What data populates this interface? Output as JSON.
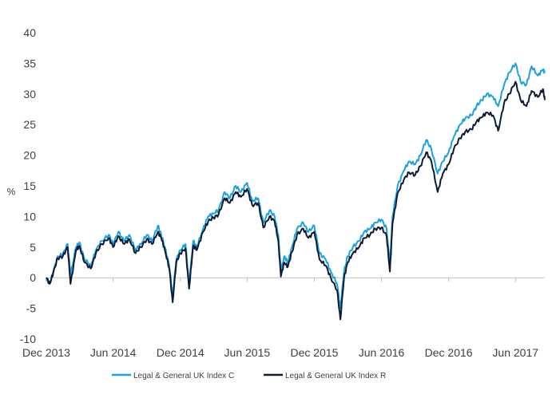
{
  "chart_data": {
    "type": "line",
    "ylabel": "%",
    "ylim": [
      -10,
      40
    ],
    "yticks": [
      -10,
      -5,
      0,
      5,
      10,
      15,
      20,
      25,
      30,
      35,
      40
    ],
    "xlim": [
      "2013-12-01",
      "2017-08-20"
    ],
    "xticks": [
      {
        "label": "Dec 2013",
        "date": "2013-12-01"
      },
      {
        "label": "Jun 2014",
        "date": "2014-06-01"
      },
      {
        "label": "Dec 2014",
        "date": "2014-12-01"
      },
      {
        "label": "Jun 2015",
        "date": "2015-06-01"
      },
      {
        "label": "Dec 2015",
        "date": "2015-12-01"
      },
      {
        "label": "Jun 2016",
        "date": "2016-06-01"
      },
      {
        "label": "Dec 2016",
        "date": "2016-12-01"
      },
      {
        "label": "Jun 2017",
        "date": "2017-06-01"
      }
    ],
    "grid": false,
    "legend_position": "bottom",
    "series": [
      {
        "name": "Legal & General UK Index C",
        "color": "#1BA1E2",
        "points": [
          [
            "2013-12-01",
            0.0
          ],
          [
            "2013-12-10",
            -1.0
          ],
          [
            "2013-12-20",
            1.0
          ],
          [
            "2014-01-01",
            3.5
          ],
          [
            "2014-01-15",
            3.8
          ],
          [
            "2014-01-28",
            5.5
          ],
          [
            "2014-02-05",
            0.5
          ],
          [
            "2014-02-20",
            5.0
          ],
          [
            "2014-03-01",
            5.8
          ],
          [
            "2014-03-15",
            3.0
          ],
          [
            "2014-04-01",
            2.0
          ],
          [
            "2014-04-15",
            4.5
          ],
          [
            "2014-05-01",
            6.0
          ],
          [
            "2014-05-20",
            7.0
          ],
          [
            "2014-06-01",
            5.5
          ],
          [
            "2014-06-15",
            7.5
          ],
          [
            "2014-07-01",
            6.0
          ],
          [
            "2014-07-15",
            7.0
          ],
          [
            "2014-08-01",
            4.5
          ],
          [
            "2014-08-15",
            5.5
          ],
          [
            "2014-09-01",
            7.0
          ],
          [
            "2014-09-15",
            6.0
          ],
          [
            "2014-10-01",
            8.5
          ],
          [
            "2014-10-10",
            7.0
          ],
          [
            "2014-10-20",
            5.0
          ],
          [
            "2014-11-01",
            2.0
          ],
          [
            "2014-11-10",
            -3.0
          ],
          [
            "2014-11-20",
            3.0
          ],
          [
            "2014-12-01",
            4.5
          ],
          [
            "2014-12-15",
            5.5
          ],
          [
            "2014-12-25",
            -1.0
          ],
          [
            "2015-01-05",
            6.0
          ],
          [
            "2015-01-15",
            5.0
          ],
          [
            "2015-02-01",
            8.0
          ],
          [
            "2015-02-15",
            10.0
          ],
          [
            "2015-03-01",
            10.5
          ],
          [
            "2015-03-15",
            11.0
          ],
          [
            "2015-04-01",
            14.0
          ],
          [
            "2015-04-15",
            13.0
          ],
          [
            "2015-05-01",
            15.0
          ],
          [
            "2015-05-15",
            14.0
          ],
          [
            "2015-06-01",
            15.5
          ],
          [
            "2015-06-15",
            12.5
          ],
          [
            "2015-07-01",
            13.0
          ],
          [
            "2015-07-15",
            9.0
          ],
          [
            "2015-08-01",
            11.0
          ],
          [
            "2015-08-15",
            10.0
          ],
          [
            "2015-08-25",
            7.0
          ],
          [
            "2015-09-01",
            1.0
          ],
          [
            "2015-09-10",
            3.5
          ],
          [
            "2015-09-20",
            2.5
          ],
          [
            "2015-10-01",
            5.0
          ],
          [
            "2015-10-15",
            8.0
          ],
          [
            "2015-11-01",
            9.0
          ],
          [
            "2015-11-15",
            7.5
          ],
          [
            "2015-12-01",
            8.5
          ],
          [
            "2015-12-15",
            4.0
          ],
          [
            "2016-01-01",
            3.0
          ],
          [
            "2016-01-15",
            1.0
          ],
          [
            "2016-02-01",
            -1.0
          ],
          [
            "2016-02-10",
            -5.0
          ],
          [
            "2016-02-20",
            1.0
          ],
          [
            "2016-03-01",
            3.5
          ],
          [
            "2016-03-15",
            5.0
          ],
          [
            "2016-04-01",
            6.0
          ],
          [
            "2016-04-15",
            7.5
          ],
          [
            "2016-05-01",
            8.0
          ],
          [
            "2016-05-15",
            9.0
          ],
          [
            "2016-06-01",
            9.5
          ],
          [
            "2016-06-15",
            8.0
          ],
          [
            "2016-06-24",
            2.0
          ],
          [
            "2016-07-01",
            10.0
          ],
          [
            "2016-07-15",
            15.0
          ],
          [
            "2016-08-01",
            17.5
          ],
          [
            "2016-08-15",
            19.0
          ],
          [
            "2016-09-01",
            18.5
          ],
          [
            "2016-09-15",
            20.0
          ],
          [
            "2016-10-01",
            22.5
          ],
          [
            "2016-10-15",
            21.0
          ],
          [
            "2016-11-01",
            17.0
          ],
          [
            "2016-11-15",
            19.0
          ],
          [
            "2016-12-01",
            20.5
          ],
          [
            "2016-12-15",
            23.0
          ],
          [
            "2017-01-01",
            25.0
          ],
          [
            "2017-01-15",
            26.0
          ],
          [
            "2017-02-01",
            26.5
          ],
          [
            "2017-02-15",
            28.0
          ],
          [
            "2017-03-01",
            29.0
          ],
          [
            "2017-03-15",
            30.0
          ],
          [
            "2017-04-01",
            29.5
          ],
          [
            "2017-04-15",
            28.0
          ],
          [
            "2017-05-01",
            31.5
          ],
          [
            "2017-05-15",
            33.5
          ],
          [
            "2017-06-01",
            35.0
          ],
          [
            "2017-06-15",
            32.0
          ],
          [
            "2017-07-01",
            31.5
          ],
          [
            "2017-07-15",
            34.5
          ],
          [
            "2017-08-01",
            33.0
          ],
          [
            "2017-08-15",
            34.0
          ],
          [
            "2017-08-20",
            33.5
          ]
        ]
      },
      {
        "name": "Legal & General UK Index R",
        "color": "#0C1B33",
        "points": [
          [
            "2013-12-01",
            0.0
          ],
          [
            "2013-12-10",
            -1.0
          ],
          [
            "2013-12-20",
            0.8
          ],
          [
            "2014-01-01",
            3.2
          ],
          [
            "2014-01-15",
            3.5
          ],
          [
            "2014-01-28",
            5.0
          ],
          [
            "2014-02-05",
            -1.0
          ],
          [
            "2014-02-20",
            4.5
          ],
          [
            "2014-03-01",
            5.2
          ],
          [
            "2014-03-15",
            2.5
          ],
          [
            "2014-04-01",
            1.5
          ],
          [
            "2014-04-15",
            4.0
          ],
          [
            "2014-05-01",
            5.5
          ],
          [
            "2014-05-20",
            6.5
          ],
          [
            "2014-06-01",
            5.0
          ],
          [
            "2014-06-15",
            6.8
          ],
          [
            "2014-07-01",
            5.5
          ],
          [
            "2014-07-15",
            6.3
          ],
          [
            "2014-08-01",
            4.0
          ],
          [
            "2014-08-15",
            5.0
          ],
          [
            "2014-09-01",
            6.3
          ],
          [
            "2014-09-15",
            5.5
          ],
          [
            "2014-10-01",
            7.5
          ],
          [
            "2014-10-10",
            6.5
          ],
          [
            "2014-10-20",
            4.5
          ],
          [
            "2014-11-01",
            1.5
          ],
          [
            "2014-11-10",
            -4.0
          ],
          [
            "2014-11-20",
            2.5
          ],
          [
            "2014-12-01",
            4.0
          ],
          [
            "2014-12-15",
            4.8
          ],
          [
            "2014-12-25",
            -1.8
          ],
          [
            "2015-01-05",
            5.3
          ],
          [
            "2015-01-15",
            4.5
          ],
          [
            "2015-02-01",
            7.5
          ],
          [
            "2015-02-15",
            9.2
          ],
          [
            "2015-03-01",
            9.8
          ],
          [
            "2015-03-15",
            10.3
          ],
          [
            "2015-04-01",
            13.0
          ],
          [
            "2015-04-15",
            12.2
          ],
          [
            "2015-05-01",
            14.0
          ],
          [
            "2015-05-15",
            13.2
          ],
          [
            "2015-06-01",
            14.5
          ],
          [
            "2015-06-15",
            11.8
          ],
          [
            "2015-07-01",
            12.2
          ],
          [
            "2015-07-15",
            8.2
          ],
          [
            "2015-08-01",
            10.0
          ],
          [
            "2015-08-15",
            9.2
          ],
          [
            "2015-08-25",
            6.0
          ],
          [
            "2015-09-01",
            0.2
          ],
          [
            "2015-09-10",
            2.5
          ],
          [
            "2015-09-20",
            1.8
          ],
          [
            "2015-10-01",
            4.2
          ],
          [
            "2015-10-15",
            7.0
          ],
          [
            "2015-11-01",
            8.0
          ],
          [
            "2015-11-15",
            6.5
          ],
          [
            "2015-12-01",
            7.5
          ],
          [
            "2015-12-15",
            3.0
          ],
          [
            "2016-01-01",
            2.0
          ],
          [
            "2016-01-15",
            0.0
          ],
          [
            "2016-02-01",
            -2.0
          ],
          [
            "2016-02-10",
            -6.8
          ],
          [
            "2016-02-20",
            0.0
          ],
          [
            "2016-03-01",
            2.5
          ],
          [
            "2016-03-15",
            4.0
          ],
          [
            "2016-04-01",
            5.0
          ],
          [
            "2016-04-15",
            6.5
          ],
          [
            "2016-05-01",
            7.0
          ],
          [
            "2016-05-15",
            8.0
          ],
          [
            "2016-06-01",
            8.2
          ],
          [
            "2016-06-15",
            6.8
          ],
          [
            "2016-06-24",
            1.0
          ],
          [
            "2016-07-01",
            8.8
          ],
          [
            "2016-07-15",
            13.8
          ],
          [
            "2016-08-01",
            16.0
          ],
          [
            "2016-08-15",
            17.2
          ],
          [
            "2016-09-01",
            16.8
          ],
          [
            "2016-09-15",
            18.2
          ],
          [
            "2016-10-01",
            20.5
          ],
          [
            "2016-10-15",
            19.0
          ],
          [
            "2016-11-01",
            14.0
          ],
          [
            "2016-11-15",
            17.0
          ],
          [
            "2016-12-01",
            18.5
          ],
          [
            "2016-12-15",
            21.0
          ],
          [
            "2017-01-01",
            22.8
          ],
          [
            "2017-01-15",
            23.8
          ],
          [
            "2017-02-01",
            24.2
          ],
          [
            "2017-02-15",
            25.5
          ],
          [
            "2017-03-01",
            26.2
          ],
          [
            "2017-03-15",
            27.0
          ],
          [
            "2017-04-01",
            26.5
          ],
          [
            "2017-04-15",
            24.0
          ],
          [
            "2017-05-01",
            28.5
          ],
          [
            "2017-05-15",
            30.0
          ],
          [
            "2017-06-01",
            32.0
          ],
          [
            "2017-06-15",
            29.0
          ],
          [
            "2017-07-01",
            28.0
          ],
          [
            "2017-07-15",
            30.5
          ],
          [
            "2017-08-01",
            29.5
          ],
          [
            "2017-08-15",
            30.8
          ],
          [
            "2017-08-20",
            29.0
          ]
        ]
      }
    ]
  }
}
